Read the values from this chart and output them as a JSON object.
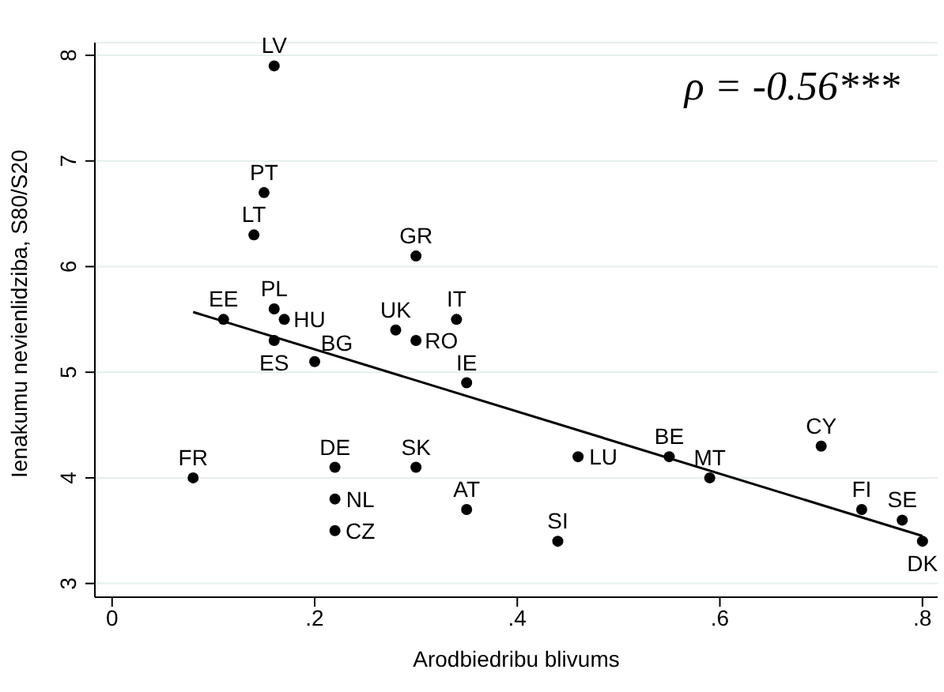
{
  "chart_data": {
    "type": "scatter",
    "xlabel": "Arodbiedribu blivums",
    "ylabel": "Ienakumu nevienlidziba, S80/S20",
    "xlim": [
      -0.017,
      0.815
    ],
    "ylim": [
      2.87,
      8.12
    ],
    "xticks": [
      0,
      {
        "value": 0.2,
        "label": ".2"
      },
      {
        "value": 0.4,
        "label": ".4"
      },
      {
        "value": 0.6,
        "label": ".6"
      },
      {
        "value": 0.8,
        "label": ".8"
      }
    ],
    "yticks": [
      3,
      4,
      5,
      6,
      7,
      8
    ],
    "grid": "y",
    "series": [
      {
        "type": "scatter",
        "marker": "circle",
        "color": "#000000",
        "x": [
          0.16,
          0.15,
          0.14,
          0.3,
          0.11,
          0.16,
          0.17,
          0.16,
          0.2,
          0.28,
          0.3,
          0.34,
          0.35,
          0.08,
          0.22,
          0.22,
          0.22,
          0.3,
          0.35,
          0.44,
          0.46,
          0.55,
          0.59,
          0.7,
          0.74,
          0.78,
          0.8
        ],
        "values": [
          7.9,
          6.7,
          6.3,
          6.1,
          5.5,
          5.6,
          5.5,
          5.3,
          5.1,
          5.4,
          5.3,
          5.5,
          4.9,
          4.0,
          4.1,
          3.8,
          3.5,
          4.1,
          3.7,
          3.4,
          4.2,
          4.2,
          4.0,
          4.3,
          3.7,
          3.6,
          3.4
        ]
      },
      {
        "type": "line",
        "color": "#000000",
        "x": [
          0.08,
          0.8
        ],
        "values": [
          5.57,
          3.45
        ]
      }
    ],
    "annotations": [
      "ρ = -0.56***",
      {
        "text": "LV",
        "x": 0.16,
        "y": 7.9
      },
      {
        "text": "PT",
        "x": 0.15,
        "y": 6.7
      },
      {
        "text": "LT",
        "x": 0.14,
        "y": 6.3
      },
      {
        "text": "GR",
        "x": 0.3,
        "y": 6.1
      },
      {
        "text": "EE",
        "x": 0.11,
        "y": 5.5
      },
      {
        "text": "PL",
        "x": 0.16,
        "y": 5.6
      },
      {
        "text": "HU",
        "x": 0.17,
        "y": 5.5
      },
      {
        "text": "ES",
        "x": 0.16,
        "y": 5.3
      },
      {
        "text": "BG",
        "x": 0.2,
        "y": 5.1
      },
      {
        "text": "UK",
        "x": 0.28,
        "y": 5.4
      },
      {
        "text": "RO",
        "x": 0.3,
        "y": 5.3
      },
      {
        "text": "IT",
        "x": 0.34,
        "y": 5.5
      },
      {
        "text": "IE",
        "x": 0.35,
        "y": 4.9
      },
      {
        "text": "FR",
        "x": 0.08,
        "y": 4.0
      },
      {
        "text": "DE",
        "x": 0.22,
        "y": 4.1
      },
      {
        "text": "NL",
        "x": 0.22,
        "y": 3.8
      },
      {
        "text": "CZ",
        "x": 0.22,
        "y": 3.5
      },
      {
        "text": "SK",
        "x": 0.3,
        "y": 4.1
      },
      {
        "text": "AT",
        "x": 0.35,
        "y": 3.7
      },
      {
        "text": "SI",
        "x": 0.44,
        "y": 3.4
      },
      {
        "text": "LU",
        "x": 0.46,
        "y": 4.2
      },
      {
        "text": "BE",
        "x": 0.55,
        "y": 4.2
      },
      {
        "text": "MT",
        "x": 0.59,
        "y": 4.0
      },
      {
        "text": "CY",
        "x": 0.7,
        "y": 4.3
      },
      {
        "text": "FI",
        "x": 0.74,
        "y": 3.7
      },
      {
        "text": "SE",
        "x": 0.78,
        "y": 3.6
      },
      {
        "text": "DK",
        "x": 0.8,
        "y": 3.4
      }
    ]
  }
}
